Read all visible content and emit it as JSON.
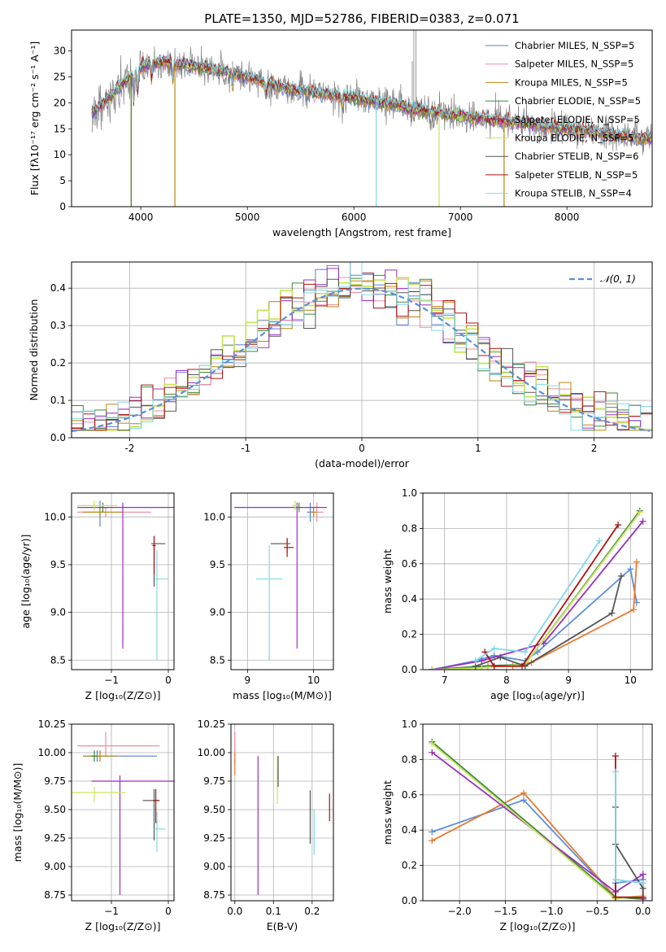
{
  "colors": {
    "chabrier_miles": "#5b7fd6",
    "salpeter_miles": "#f08aa0",
    "kroupa_miles": "#b8860b",
    "chabrier_elodie": "#3a8a3a",
    "salpeter_elodie": "#9b2fbf",
    "kroupa_elodie": "#c8e65a",
    "chabrier_stelib": "#555555",
    "salpeter_stelib": "#b01010",
    "kroupa_stelib": "#80d8e8",
    "blue": "#5b8fd9",
    "orange": "#e87a2f",
    "gray_data": "#808080",
    "normal": "#5b8fd9"
  },
  "chart_data": [
    {
      "id": "spectrum",
      "type": "line",
      "title": "PLATE=1350, MJD=52786, FIBERID=0383, z=0.071",
      "xlabel": "wavelength [Angstrom, rest frame]",
      "ylabel": "Flux [fλ10⁻¹⁷ erg cm⁻² s⁻¹ A⁻¹]",
      "xlim": [
        3350,
        8800
      ],
      "ylim": [
        0,
        34
      ],
      "xticks": [
        4000,
        5000,
        6000,
        7000,
        8000
      ],
      "yticks": [
        0,
        5,
        10,
        15,
        20,
        25,
        30
      ],
      "grid": false,
      "legend_position": "top-right",
      "legend": [
        "Chabrier MILES, N_SSP=5",
        "Salpeter MILES, N_SSP=5",
        "Kroupa MILES, N_SSP=5",
        "Chabrier ELODIE, N_SSP=5",
        "Salpeter ELODIE, N_SSP=5",
        "Kroupa ELODIE, N_SSP=5",
        "Chabrier STELIB, N_SSP=6",
        "Salpeter STELIB, N_SSP=5",
        "Kroupa STELIB, N_SSP=4"
      ],
      "continuum_x": [
        3550,
        3700,
        3850,
        4000,
        4200,
        4500,
        4800,
        5000,
        5300,
        5600,
        6000,
        6400,
        6800,
        7200,
        7600,
        8000,
        8400,
        8800
      ],
      "continuum_y": [
        18,
        21,
        24,
        27,
        28,
        27,
        26,
        25,
        23,
        22,
        21,
        19.5,
        18,
        17,
        16,
        15,
        14,
        13
      ]
    },
    {
      "id": "residuals",
      "type": "line",
      "xlabel": "(data-model)/error",
      "ylabel": "Normed distribution",
      "xlim": [
        -2.5,
        2.5
      ],
      "ylim": [
        0,
        0.47
      ],
      "xticks": [
        -2,
        -1,
        0,
        1,
        2
      ],
      "yticks": [
        0.0,
        0.1,
        0.2,
        0.3,
        0.4
      ],
      "grid": true,
      "legend_position": "top-right",
      "legend": [
        "𝒩(0, 1)"
      ]
    },
    {
      "id": "age_vs_Z",
      "type": "scatter",
      "xlabel": "Z [log₁₀(Z/Z⊙)]",
      "ylabel": "age  [log₁₀(age/yr)]",
      "xlim": [
        -1.7,
        0.1
      ],
      "ylim": [
        8.4,
        10.25
      ],
      "xticks": [
        -1,
        0
      ],
      "xtick_labels": [
        "−1",
        "0"
      ],
      "yticks": [
        8.5,
        9.0,
        9.5,
        10.0
      ],
      "ytick_labels": [
        "8.5",
        "9.0",
        "9.5",
        "10.0"
      ],
      "grid": true,
      "points": [
        {
          "x": -1.2,
          "xerr": [
            0.35,
            0.05
          ],
          "y": 10.05,
          "yerr": [
            0.15,
            0.12
          ],
          "c": "chabrier_miles"
        },
        {
          "x": -1.1,
          "xerr": [
            0.5,
            0.8
          ],
          "y": 10.05,
          "yerr": [
            0.05,
            0.05
          ],
          "c": "salpeter_miles"
        },
        {
          "x": -1.2,
          "xerr": [
            0.3,
            0.4
          ],
          "y": 10.05,
          "yerr": [
            0.05,
            0.05
          ],
          "c": "kroupa_miles"
        },
        {
          "x": -1.15,
          "xerr": [
            0.1,
            0.1
          ],
          "y": 10.1,
          "yerr": [
            0.05,
            0.05
          ],
          "c": "chabrier_elodie"
        },
        {
          "x": -0.8,
          "xerr": [
            0.8,
            0.9
          ],
          "y": 10.1,
          "yerr": [
            1.48,
            0.05
          ],
          "c": "salpeter_elodie"
        },
        {
          "x": -1.3,
          "xerr": [
            0.3,
            0.4
          ],
          "y": 10.12,
          "yerr": [
            0.05,
            0.05
          ],
          "c": "kroupa_elodie"
        },
        {
          "x": -0.25,
          "xerr": [
            0.05,
            0.2
          ],
          "y": 9.72,
          "yerr": [
            0.45,
            0.08
          ],
          "c": "chabrier_stelib"
        },
        {
          "x": -0.25,
          "xerr": [
            0.03,
            0.03
          ],
          "y": 9.7,
          "yerr": [
            0.3,
            0.1
          ],
          "c": "salpeter_stelib"
        },
        {
          "x": -0.2,
          "xerr": [
            0.03,
            0.2
          ],
          "y": 9.35,
          "yerr": [
            0.85,
            0.3
          ],
          "c": "kroupa_stelib"
        }
      ]
    },
    {
      "id": "age_vs_mass",
      "type": "scatter",
      "xlabel": "mass [log₁₀(M/M⊙)]",
      "ylabel": "",
      "xlim": [
        8.75,
        10.3
      ],
      "ylim": [
        8.4,
        10.25
      ],
      "xticks": [
        9,
        10
      ],
      "xtick_labels": [
        "9",
        "10"
      ],
      "yticks": [
        8.5,
        9.0,
        9.5,
        10.0
      ],
      "ytick_labels": [
        "8.5",
        "9.0",
        "9.5",
        "10.0"
      ],
      "grid": true,
      "points": [
        {
          "x": 9.95,
          "xerr": [
            0.05,
            0.05
          ],
          "y": 10.05,
          "yerr": [
            0.1,
            0.1
          ],
          "c": "chabrier_miles"
        },
        {
          "x": 10.05,
          "xerr": [
            0.1,
            0.1
          ],
          "y": 10.05,
          "yerr": [
            0.1,
            0.1
          ],
          "c": "salpeter_miles"
        },
        {
          "x": 10.0,
          "xerr": [
            0.05,
            0.05
          ],
          "y": 10.05,
          "yerr": [
            0.05,
            0.05
          ],
          "c": "kroupa_miles"
        },
        {
          "x": 9.78,
          "xerr": [
            0.05,
            0.05
          ],
          "y": 10.1,
          "yerr": [
            0.05,
            0.05
          ],
          "c": "chabrier_elodie"
        },
        {
          "x": 9.75,
          "xerr": [
            0.95,
            0.45
          ],
          "y": 10.1,
          "yerr": [
            1.48,
            0.05
          ],
          "c": "salpeter_elodie"
        },
        {
          "x": 9.72,
          "xerr": [
            0.05,
            0.05
          ],
          "y": 10.12,
          "yerr": [
            0.05,
            0.05
          ],
          "c": "kroupa_elodie"
        },
        {
          "x": 9.6,
          "xerr": [
            0.25,
            0.05
          ],
          "y": 9.72,
          "yerr": [
            0.1,
            0.05
          ],
          "c": "chabrier_stelib"
        },
        {
          "x": 9.6,
          "xerr": [
            0.05,
            0.1
          ],
          "y": 9.68,
          "yerr": [
            0.1,
            0.1
          ],
          "c": "salpeter_stelib"
        },
        {
          "x": 9.33,
          "xerr": [
            0.2,
            0.2
          ],
          "y": 9.35,
          "yerr": [
            0.85,
            0.35
          ],
          "c": "kroupa_stelib"
        }
      ]
    },
    {
      "id": "weight_vs_age",
      "type": "line",
      "xlabel": "age  [log₁₀(age/yr)]",
      "ylabel": "mass weight",
      "xlim": [
        6.65,
        10.35
      ],
      "ylim": [
        0,
        1.0
      ],
      "xticks": [
        7,
        8,
        9,
        10
      ],
      "xtick_labels": [
        "7",
        "8",
        "9",
        "10"
      ],
      "yticks": [
        0.0,
        0.2,
        0.4,
        0.6,
        0.8,
        1.0
      ],
      "ytick_labels": [
        "0.0",
        "0.2",
        "0.4",
        "0.6",
        "0.8",
        "1.0"
      ],
      "grid": true,
      "series": [
        {
          "c": "blue",
          "x": [
            6.8,
            7.5,
            7.8,
            8.3,
            8.5,
            10.0,
            10.1
          ],
          "y": [
            0.0,
            0.05,
            0.08,
            0.05,
            0.1,
            0.57,
            0.38
          ]
        },
        {
          "c": "orange",
          "x": [
            6.8,
            7.7,
            8.1,
            8.4,
            10.05,
            10.1
          ],
          "y": [
            0.0,
            0.02,
            0.02,
            0.04,
            0.34,
            0.61
          ]
        },
        {
          "c": "chabrier_elodie",
          "x": [
            6.8,
            7.6,
            8.3,
            10.15
          ],
          "y": [
            0.0,
            0.02,
            0.03,
            0.9
          ]
        },
        {
          "c": "salpeter_elodie",
          "x": [
            6.8,
            7.6,
            8.6,
            10.2
          ],
          "y": [
            0.0,
            0.05,
            0.15,
            0.84
          ]
        },
        {
          "c": "kroupa_elodie",
          "x": [
            6.8,
            7.6,
            8.3,
            10.15
          ],
          "y": [
            0.0,
            0.01,
            0.03,
            0.89
          ]
        },
        {
          "c": "chabrier_stelib",
          "x": [
            7.5,
            7.9,
            8.3,
            9.7,
            9.85
          ],
          "y": [
            0.02,
            0.07,
            0.02,
            0.32,
            0.53
          ]
        },
        {
          "c": "salpeter_stelib",
          "x": [
            7.65,
            7.8,
            8.25,
            9.8
          ],
          "y": [
            0.1,
            0.02,
            0.02,
            0.82
          ]
        },
        {
          "c": "kroupa_stelib",
          "x": [
            7.5,
            7.8,
            8.3,
            9.5
          ],
          "y": [
            0.05,
            0.12,
            0.1,
            0.73
          ]
        }
      ]
    },
    {
      "id": "mass_vs_Z",
      "type": "scatter",
      "xlabel": "Z [log₁₀(Z/Z⊙)]",
      "ylabel": "mass [log₁₀(M/M⊙)]",
      "xlim": [
        -1.7,
        0.1
      ],
      "ylim": [
        8.7,
        10.25
      ],
      "xticks": [
        -1,
        0
      ],
      "xtick_labels": [
        "−1",
        "0"
      ],
      "yticks": [
        8.75,
        9.0,
        9.25,
        9.5,
        9.75,
        10.0,
        10.25
      ],
      "ytick_labels": [
        "8.75",
        "9.00",
        "9.25",
        "9.50",
        "9.75",
        "10.00",
        "10.25"
      ],
      "grid": true,
      "points": [
        {
          "x": -1.25,
          "xerr": [
            0.25,
            1.05
          ],
          "y": 9.97,
          "yerr": [
            0.05,
            0.05
          ],
          "c": "chabrier_miles"
        },
        {
          "x": -1.1,
          "xerr": [
            0.5,
            0.95
          ],
          "y": 10.06,
          "yerr": [
            0.1,
            0.12
          ],
          "c": "salpeter_miles"
        },
        {
          "x": -1.2,
          "xerr": [
            0.3,
            0.3
          ],
          "y": 9.97,
          "yerr": [
            0.05,
            0.05
          ],
          "c": "kroupa_miles"
        },
        {
          "x": -1.3,
          "xerr": [
            0.05,
            0.05
          ],
          "y": 9.97,
          "yerr": [
            0.05,
            0.05
          ],
          "c": "chabrier_elodie"
        },
        {
          "x": -0.85,
          "xerr": [
            0.5,
            0.95
          ],
          "y": 9.75,
          "yerr": [
            1.0,
            0.05
          ],
          "c": "salpeter_elodie"
        },
        {
          "x": -1.3,
          "xerr": [
            0.4,
            0.55
          ],
          "y": 9.65,
          "yerr": [
            0.08,
            0.05
          ],
          "c": "kroupa_elodie"
        },
        {
          "x": -0.25,
          "xerr": [
            0.2,
            0.1
          ],
          "y": 9.58,
          "yerr": [
            0.35,
            0.1
          ],
          "c": "chabrier_stelib"
        },
        {
          "x": -0.22,
          "xerr": [
            0.05,
            0.05
          ],
          "y": 9.58,
          "yerr": [
            0.2,
            0.1
          ],
          "c": "salpeter_stelib"
        },
        {
          "x": -0.2,
          "xerr": [
            0.05,
            0.15
          ],
          "y": 9.33,
          "yerr": [
            0.2,
            0.15
          ],
          "c": "kroupa_stelib"
        }
      ]
    },
    {
      "id": "mass_vs_ebv",
      "type": "scatter",
      "xlabel": "E(B-V)",
      "ylabel": "",
      "xlim": [
        -0.01,
        0.255
      ],
      "ylim": [
        8.7,
        10.25
      ],
      "xticks": [
        0.0,
        0.1,
        0.2
      ],
      "xtick_labels": [
        "0.0",
        "0.1",
        "0.2"
      ],
      "yticks": [
        8.75,
        9.0,
        9.25,
        9.5,
        9.75,
        10.0,
        10.25
      ],
      "ytick_labels": [
        "8.75",
        "9.00",
        "9.25",
        "9.50",
        "9.75",
        "10.00",
        "10.25"
      ],
      "grid": true,
      "points": [
        {
          "x": 0.0,
          "xerr": [
            0,
            0
          ],
          "y": 10.0,
          "yerr": [
            0.1,
            0.18
          ],
          "c": "salpeter_miles"
        },
        {
          "x": 0.0,
          "xerr": [
            0,
            0
          ],
          "y": 9.95,
          "yerr": [
            0.15,
            0.05
          ],
          "c": "orange"
        },
        {
          "x": 0.06,
          "xerr": [
            0,
            0
          ],
          "y": 9.75,
          "yerr": [
            1.0,
            0.22
          ],
          "c": "salpeter_elodie"
        },
        {
          "x": 0.11,
          "xerr": [
            0,
            0
          ],
          "y": 9.75,
          "yerr": [
            0.2,
            0.22
          ],
          "c": "kroupa_elodie"
        },
        {
          "x": 0.112,
          "xerr": [
            0,
            0
          ],
          "y": 9.75,
          "yerr": [
            0.05,
            0.22
          ],
          "c": "chabrier_stelib"
        },
        {
          "x": 0.195,
          "xerr": [
            0,
            0
          ],
          "y": 9.45,
          "yerr": [
            0.25,
            0.22
          ],
          "c": "chabrier_stelib"
        },
        {
          "x": 0.205,
          "xerr": [
            0,
            0
          ],
          "y": 9.3,
          "yerr": [
            0.2,
            0.2
          ],
          "c": "kroupa_stelib"
        },
        {
          "x": 0.245,
          "xerr": [
            0,
            0
          ],
          "y": 9.52,
          "yerr": [
            0.12,
            0.12
          ],
          "c": "salpeter_stelib"
        }
      ]
    },
    {
      "id": "weight_vs_Z",
      "type": "line",
      "xlabel": "Z [log₁₀(Z/Z⊙)]",
      "ylabel": "mass weight",
      "xlim": [
        -2.4,
        0.1
      ],
      "ylim": [
        0,
        1.0
      ],
      "xticks": [
        -2.0,
        -1.5,
        -1.0,
        -0.5,
        0.0
      ],
      "xtick_labels": [
        "−2.0",
        "−1.5",
        "−1.0",
        "−0.5",
        "0.0"
      ],
      "yticks": [
        0.0,
        0.2,
        0.4,
        0.6,
        0.8,
        1.0
      ],
      "ytick_labels": [
        "0.0",
        "0.2",
        "0.4",
        "0.6",
        "0.8",
        "1.0"
      ],
      "grid": true,
      "series": [
        {
          "c": "blue",
          "x": [
            -2.3,
            -1.3,
            -0.3,
            -0.3,
            0.0
          ],
          "y": [
            0.39,
            0.57,
            0.02,
            0.1,
            0.12
          ]
        },
        {
          "c": "orange",
          "x": [
            -2.3,
            -1.3,
            -0.3,
            0.0
          ],
          "y": [
            0.34,
            0.61,
            0.02,
            0.01
          ]
        },
        {
          "c": "chabrier_elodie",
          "x": [
            -2.3,
            -0.3,
            0.0
          ],
          "y": [
            0.9,
            0.02,
            0.01
          ]
        },
        {
          "c": "salpeter_elodie",
          "x": [
            -2.3,
            -0.3,
            0.0,
            0.0
          ],
          "y": [
            0.84,
            0.05,
            0.15,
            0.01
          ]
        },
        {
          "c": "kroupa_elodie",
          "x": [
            -2.3,
            -0.3,
            0.0
          ],
          "y": [
            0.89,
            0.01,
            0.03
          ]
        },
        {
          "c": "chabrier_stelib",
          "x": [
            -0.3,
            -0.3,
            -0.3,
            0.0,
            0.0
          ],
          "y": [
            0.02,
            0.53,
            0.32,
            0.07,
            0.02
          ]
        },
        {
          "c": "salpeter_stelib",
          "x": [
            -0.3,
            -0.3,
            0.0
          ],
          "y": [
            0.82,
            0.02,
            0.02
          ]
        },
        {
          "c": "kroupa_stelib",
          "x": [
            -0.3,
            -0.3,
            0.0
          ],
          "y": [
            0.73,
            0.12,
            0.1
          ]
        }
      ]
    }
  ]
}
